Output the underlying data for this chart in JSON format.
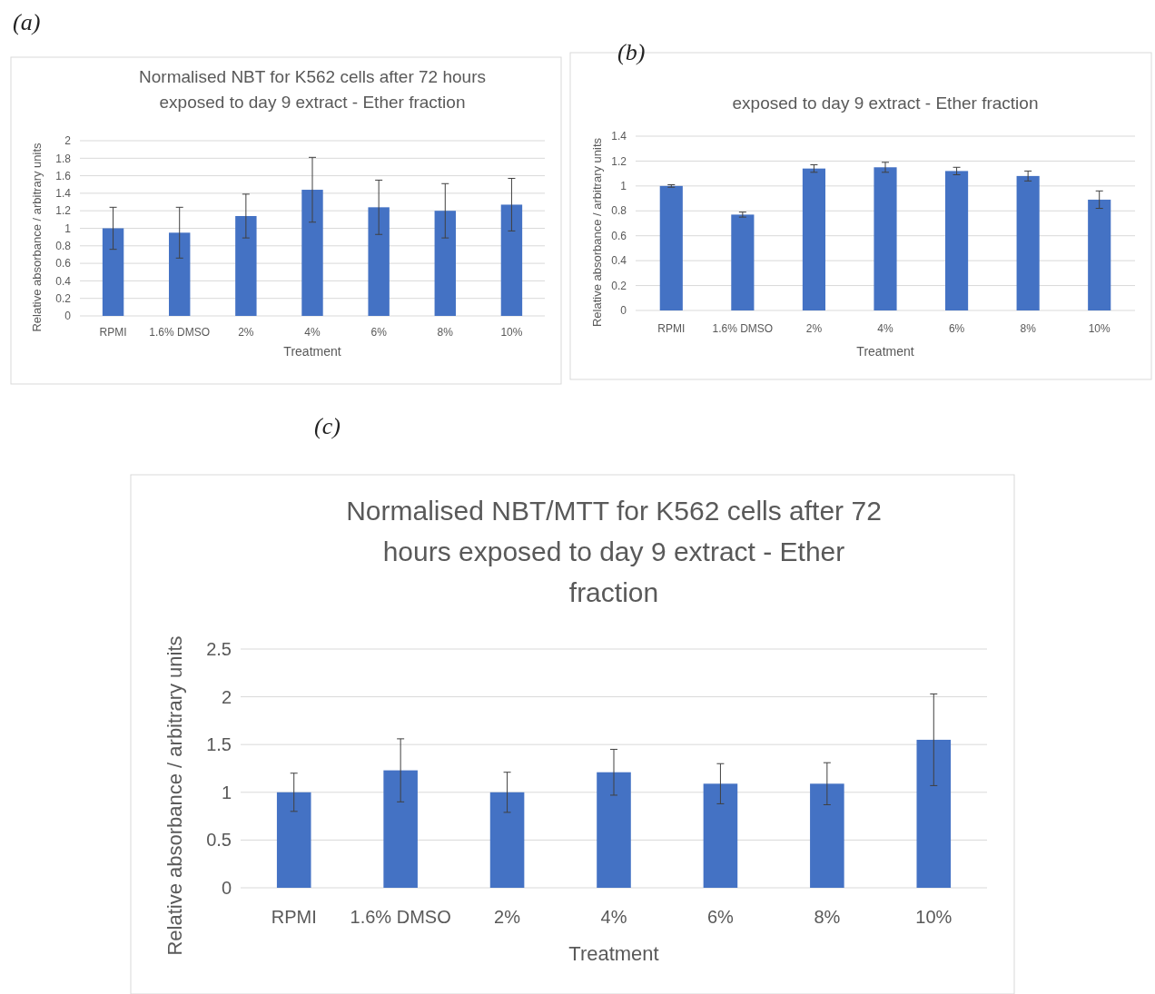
{
  "chart_data": [
    {
      "type": "bar",
      "title": "Normalised NBT for K562 cells after 72 hours exposed to day 9 extract - Ether fraction",
      "xlabel": "Treatment",
      "ylabel": "Relative absorbance / arbitrary units",
      "annotations": [
        "(a)"
      ],
      "categories": [
        "RPMI",
        "1.6% DMSO",
        "2%",
        "4%",
        "6%",
        "8%",
        "10%"
      ],
      "values": [
        1.0,
        0.95,
        1.14,
        1.44,
        1.24,
        1.2,
        1.27
      ],
      "errors": [
        0.24,
        0.29,
        0.25,
        0.37,
        0.31,
        0.31,
        0.3
      ],
      "color": "#4472c4",
      "ylim": [
        0,
        2
      ],
      "yticks": [
        0,
        0.2,
        0.4,
        0.6,
        0.8,
        1,
        1.2,
        1.4,
        1.6,
        1.8,
        2
      ],
      "grid": "y"
    },
    {
      "type": "bar",
      "title": "exposed to day 9 extract - Ether fraction",
      "xlabel": "Treatment",
      "ylabel": "Relative absorbance / arbitrary units",
      "annotations": [
        "(b)"
      ],
      "categories": [
        "RPMI",
        "1.6% DMSO",
        "2%",
        "4%",
        "6%",
        "8%",
        "10%"
      ],
      "values": [
        1.0,
        0.77,
        1.14,
        1.15,
        1.12,
        1.08,
        0.89
      ],
      "errors": [
        0.01,
        0.02,
        0.03,
        0.04,
        0.03,
        0.04,
        0.07
      ],
      "color": "#4472c4",
      "ylim": [
        0,
        1.4
      ],
      "yticks": [
        0,
        0.2,
        0.4,
        0.6,
        0.8,
        1,
        1.2,
        1.4
      ],
      "grid": "y"
    },
    {
      "type": "bar",
      "title": "Normalised NBT/MTT for K562 cells after 72 hours exposed to day 9 extract - Ether fraction",
      "xlabel": "Treatment",
      "ylabel": "Relative absorbance / arbitrary units",
      "annotations": [
        "(c)"
      ],
      "categories": [
        "RPMI",
        "1.6% DMSO",
        "2%",
        "4%",
        "6%",
        "8%",
        "10%"
      ],
      "values": [
        1.0,
        1.23,
        1.0,
        1.21,
        1.09,
        1.09,
        1.55
      ],
      "errors": [
        0.2,
        0.33,
        0.21,
        0.24,
        0.21,
        0.22,
        0.48
      ],
      "color": "#4472c4",
      "ylim": [
        0,
        2.5
      ],
      "yticks": [
        0,
        0.5,
        1,
        1.5,
        2,
        2.5
      ],
      "grid": "y"
    }
  ]
}
